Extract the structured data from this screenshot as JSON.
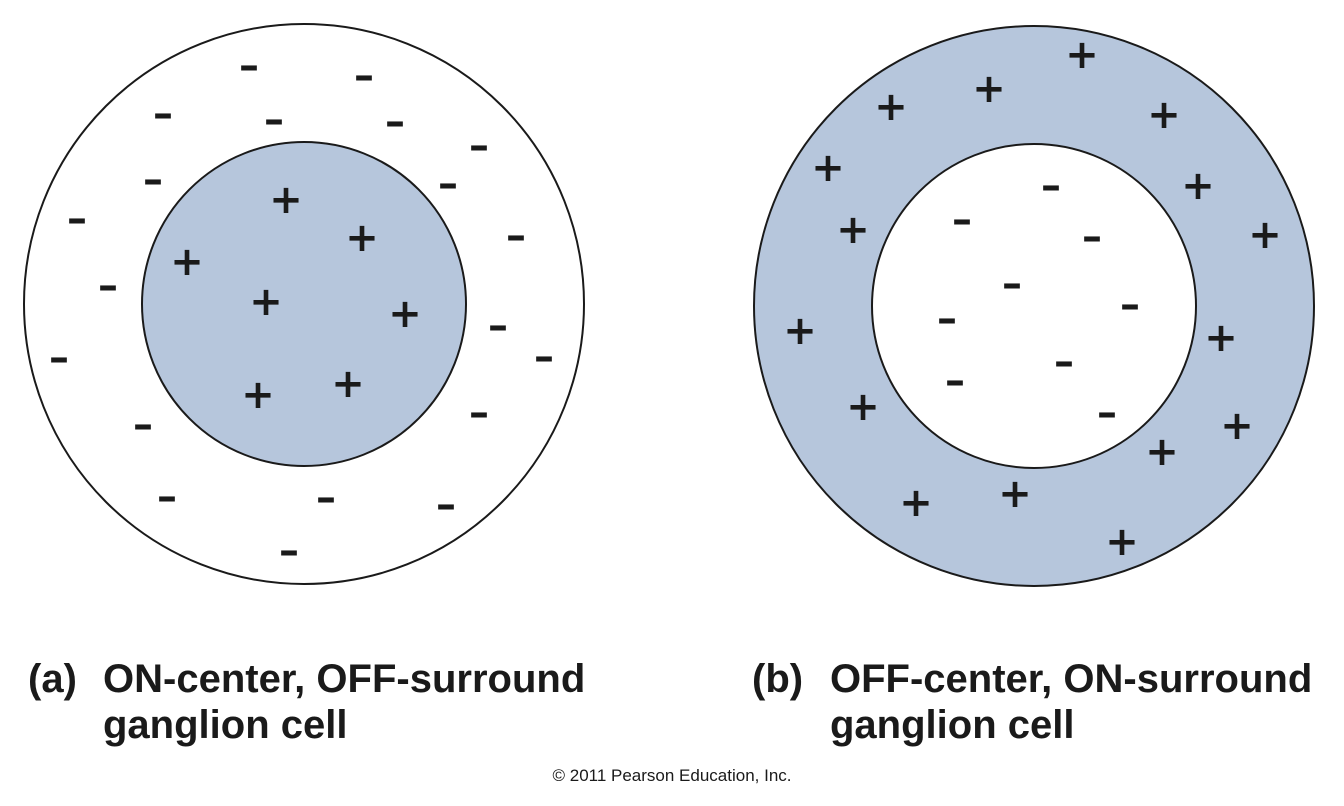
{
  "colors": {
    "fill": "#b6c6dc",
    "stroke": "#1a1a1a",
    "background": "#ffffff"
  },
  "signs": {
    "plus": "+",
    "minus": "–"
  },
  "panels": [
    {
      "id": "a",
      "letter": "(a)",
      "caption_lines": [
        "ON-center, OFF-surround",
        "ganglion cell"
      ],
      "center_sign": "plus",
      "surround_sign": "minus",
      "center_shaded": true
    },
    {
      "id": "b",
      "letter": "(b)",
      "caption_lines": [
        "OFF-center, ON-surround",
        "ganglion cell"
      ],
      "center_sign": "minus",
      "surround_sign": "plus",
      "center_shaded": false
    }
  ],
  "copyright": "© 2011 Pearson Education, Inc."
}
